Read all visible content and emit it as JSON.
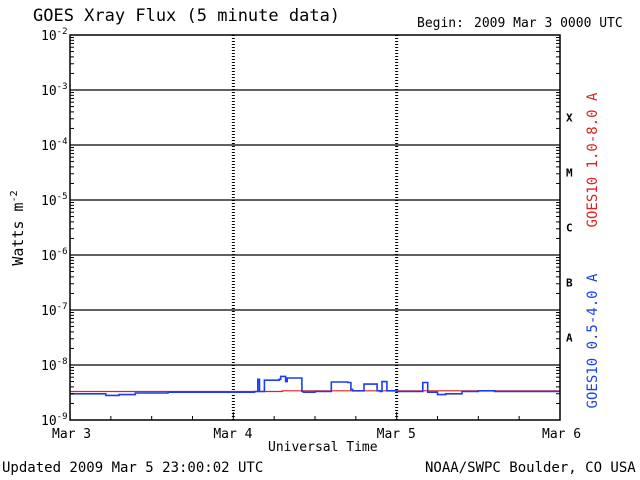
{
  "header": {
    "title": "GOES Xray Flux (5 minute data)",
    "begin_label": "Begin:",
    "begin_value": "2009 Mar 3 0000 UTC"
  },
  "footer": {
    "updated": "Updated 2009 Mar  5 23:00:02 UTC",
    "credit": "NOAA/SWPC Boulder, CO USA"
  },
  "colors": {
    "long_channel": "#dd2222",
    "short_channel": "#1a3ff0",
    "frame": "#000000",
    "background": "#ffffff"
  },
  "chart_data": {
    "type": "line",
    "title": "GOES Xray Flux (5 minute data)",
    "xlabel": "Universal Time",
    "ylabel": "Watts m",
    "ylabel_sup": "-2",
    "yscale": "log",
    "ylim": [
      1e-09,
      0.01
    ],
    "xlim": [
      0,
      3
    ],
    "x_unit": "days since 2009 Mar 3 0000 UTC",
    "x_ticks": [
      {
        "value": 0,
        "label": "Mar 3"
      },
      {
        "value": 1,
        "label": "Mar 4"
      },
      {
        "value": 2,
        "label": "Mar 5"
      },
      {
        "value": 3,
        "label": "Mar 6"
      }
    ],
    "y_ticks": [
      {
        "value": 1e-09,
        "base": "10",
        "exp": "-9"
      },
      {
        "value": 1e-08,
        "base": "10",
        "exp": "-8"
      },
      {
        "value": 1e-07,
        "base": "10",
        "exp": "-7"
      },
      {
        "value": 1e-06,
        "base": "10",
        "exp": "-6"
      },
      {
        "value": 1e-05,
        "base": "10",
        "exp": "-5"
      },
      {
        "value": 0.0001,
        "base": "10",
        "exp": "-4"
      },
      {
        "value": 0.001,
        "base": "10",
        "exp": "-3"
      },
      {
        "value": 0.01,
        "base": "10",
        "exp": "-2"
      }
    ],
    "flare_classes": [
      {
        "label": "A",
        "value": 3.16e-08
      },
      {
        "label": "B",
        "value": 3.16e-07
      },
      {
        "label": "C",
        "value": 3.16e-06
      },
      {
        "label": "M",
        "value": 3.16e-05
      },
      {
        "label": "X",
        "value": 0.000316
      }
    ],
    "grid": "horizontal decades, dashed day markers",
    "legend": "right side, vertical",
    "series": [
      {
        "name": "GOES10 1.0-8.0 A",
        "color": "#dd2222",
        "x": [
          0,
          0.15,
          0.4,
          0.8,
          1.0,
          1.3,
          1.6,
          2.0,
          2.4,
          2.8,
          3.0
        ],
        "values": [
          3.3e-09,
          3.3e-09,
          3.3e-09,
          3.3e-09,
          3.3e-09,
          3.4e-09,
          3.4e-09,
          3.4e-09,
          3.4e-09,
          3.4e-09,
          3.4e-09
        ]
      },
      {
        "name": "GOES10 0.5-4.0 A",
        "color": "#1a3ff0",
        "x": [
          0,
          0.21,
          0.22,
          0.25,
          0.3,
          0.4,
          0.6,
          0.8,
          1.0,
          1.1,
          1.13,
          1.15,
          1.16,
          1.18,
          1.19,
          1.25,
          1.28,
          1.29,
          1.3,
          1.32,
          1.33,
          1.4,
          1.42,
          1.43,
          1.5,
          1.6,
          1.65,
          1.7,
          1.72,
          1.73,
          1.75,
          1.8,
          1.88,
          1.9,
          1.91,
          1.93,
          1.94,
          2.0,
          2.1,
          2.15,
          2.16,
          2.18,
          2.19,
          2.25,
          2.3,
          2.4,
          2.5,
          2.6,
          2.8,
          3.0
        ],
        "values": [
          3e-09,
          3e-09,
          2.8e-09,
          2.8e-09,
          2.9e-09,
          3.1e-09,
          3.2e-09,
          3.2e-09,
          3.2e-09,
          3.2e-09,
          3.3e-09,
          5.5e-09,
          3.3e-09,
          3.3e-09,
          5.3e-09,
          5.3e-09,
          5.5e-09,
          6.2e-09,
          6.2e-09,
          5e-09,
          5.8e-09,
          5.8e-09,
          3.3e-09,
          3.2e-09,
          3.3e-09,
          4.9e-09,
          4.9e-09,
          4.8e-09,
          3.6e-09,
          3.4e-09,
          3.4e-09,
          4.5e-09,
          3.4e-09,
          3.3e-09,
          5e-09,
          5e-09,
          3.4e-09,
          3.3e-09,
          3.3e-09,
          3.3e-09,
          4.8e-09,
          4.8e-09,
          3.2e-09,
          2.9e-09,
          3e-09,
          3.3e-09,
          3.4e-09,
          3.3e-09,
          3.3e-09,
          3.3e-09
        ]
      }
    ]
  }
}
